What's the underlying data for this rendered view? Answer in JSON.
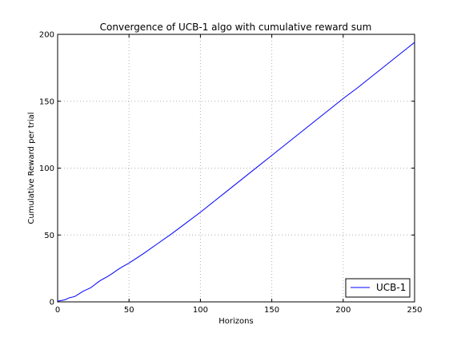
{
  "chart_data": {
    "type": "line",
    "title": "Convergence of UCB-1 algo with cumulative reward sum",
    "xlabel": "Horizons",
    "ylabel": "Cumulative Reward per trial",
    "xlim": [
      0,
      250
    ],
    "ylim": [
      0,
      200
    ],
    "xticks": [
      0,
      50,
      100,
      150,
      200,
      250
    ],
    "yticks": [
      0,
      50,
      100,
      150,
      200
    ],
    "grid": true,
    "legend_position": "lower-right",
    "series": [
      {
        "name": "UCB-1",
        "color": "#0000ff",
        "x": [
          0,
          5,
          8,
          12,
          15,
          18,
          20,
          23,
          25,
          28,
          30,
          35,
          38,
          42,
          45,
          50,
          55,
          60,
          70,
          80,
          90,
          100,
          110,
          120,
          130,
          140,
          150,
          160,
          170,
          180,
          190,
          200,
          210,
          220,
          230,
          240,
          250
        ],
        "y": [
          0.5,
          1.5,
          3,
          4,
          6,
          8,
          9,
          10.5,
          12,
          14.5,
          16,
          19,
          21,
          24,
          26,
          29,
          32.5,
          36,
          43.5,
          51,
          59,
          67,
          75.5,
          84,
          92.5,
          101,
          109.5,
          118,
          126.5,
          135,
          143.5,
          152,
          160,
          168.5,
          177,
          185.5,
          194
        ]
      }
    ]
  }
}
